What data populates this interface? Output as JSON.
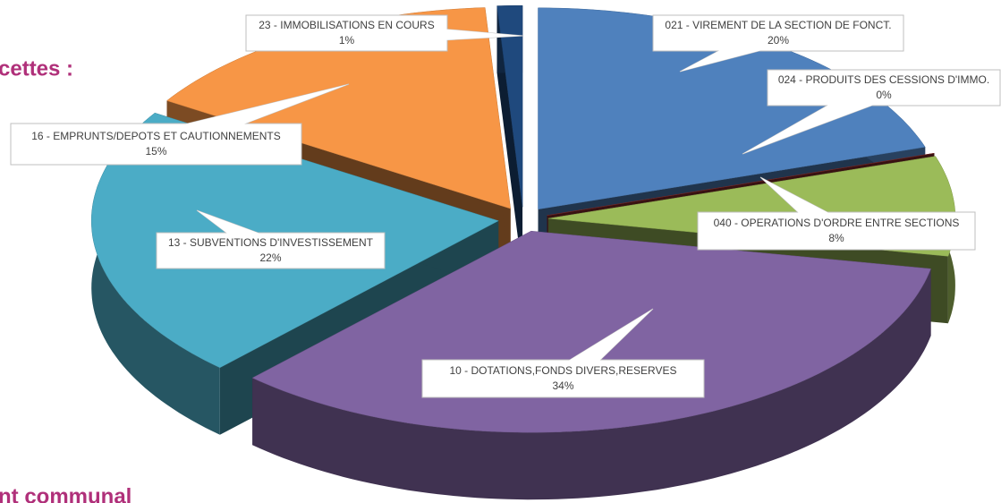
{
  "heading_fragments": [
    "cettes :",
    "nt communal"
  ],
  "chart_data": {
    "type": "pie",
    "categories": [
      "021 - VIREMENT DE LA SECTION DE FONCT.",
      "024 - PRODUITS DES CESSIONS D'IMMO.",
      "040 - OPERATIONS D'ORDRE ENTRE SECTIONS",
      "10 - DOTATIONS,FONDS DIVERS,RESERVES",
      "13 - SUBVENTIONS D'INVESTISSEMENT",
      "16 - EMPRUNTS/DEPOTS ET CAUTIONNEMENTS",
      "23 - IMMOBILISATIONS EN COURS"
    ],
    "values": [
      20,
      0,
      8,
      34,
      22,
      15,
      1
    ],
    "value_labels": [
      "20%",
      "0%",
      "8%",
      "34%",
      "22%",
      "15%",
      "1%"
    ],
    "colors": [
      "#4f81bd",
      "#8b2e2e",
      "#9bbb59",
      "#8064a2",
      "#4bacc6",
      "#f79646",
      "#1f497d"
    ]
  }
}
